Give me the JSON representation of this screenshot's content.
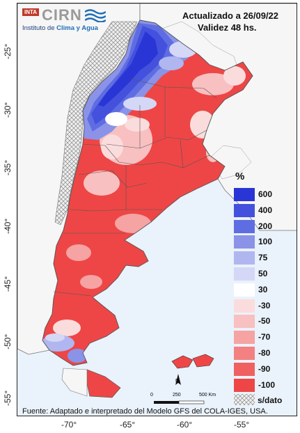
{
  "header": {
    "logo_badge": "INTA",
    "logo_name": "CIRN",
    "logo_sub_prefix": "Instituto de ",
    "logo_sub_emph": "Clima y Agua",
    "updated": "Actualizado a 26/09/22",
    "validity": "Validez 48 hs."
  },
  "axes": {
    "lat_labels": [
      "-25°",
      "-30°",
      "-35°",
      "-40°",
      "-45°",
      "-50°",
      "-55°"
    ],
    "lon_labels": [
      "-70°",
      "-65°",
      "-60°",
      "-55°"
    ]
  },
  "legend": {
    "title": "%",
    "items": [
      {
        "label": "600",
        "color": "#2a35d6"
      },
      {
        "label": "400",
        "color": "#4451dd"
      },
      {
        "label": "200",
        "color": "#5f6de2"
      },
      {
        "label": "100",
        "color": "#8a93e8"
      },
      {
        "label": "75",
        "color": "#b0b6ef"
      },
      {
        "label": "50",
        "color": "#d4d7f6"
      },
      {
        "label": "30",
        "color": "#ffffff"
      },
      {
        "label": "-30",
        "color": "#fbdcdc"
      },
      {
        "label": "-50",
        "color": "#f8c0c0"
      },
      {
        "label": "-70",
        "color": "#f5a3a3"
      },
      {
        "label": "-80",
        "color": "#f38181"
      },
      {
        "label": "-90",
        "color": "#f06060"
      },
      {
        "label": "-100",
        "color": "#ee4646"
      }
    ],
    "nodata_label": "s/dato"
  },
  "scale": {
    "north": "N",
    "tick0": "0",
    "tick1": "250",
    "tick2": "500 Km"
  },
  "source": "Fuente: Adaptado e interpretado del Modelo GFS del COLA-IGES, USA."
}
